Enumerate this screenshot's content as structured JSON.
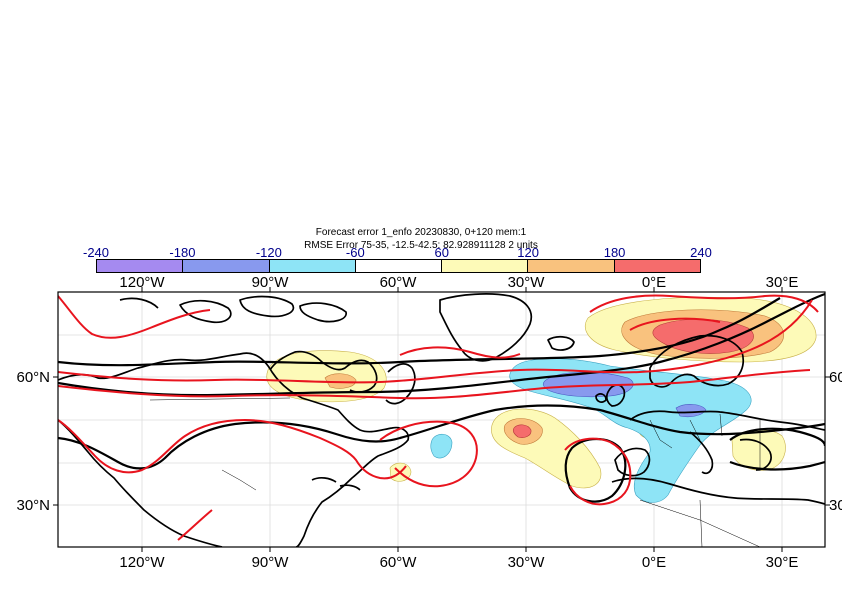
{
  "title": {
    "line1": "Forecast error  1_enfo 20230830, 0+120 mem:1",
    "line2": "RMSE Error 75-35, -12.5-42.5: 82.928911128 2 units"
  },
  "colorbar": {
    "levels": [
      "-240",
      "-180",
      "-120",
      "-60",
      "60",
      "120",
      "180",
      "240"
    ],
    "colors": [
      "#a58af0",
      "#8899ee",
      "#8ee4f6",
      "#ffffff",
      "#fdfab8",
      "#f9c27e",
      "#f56c6c"
    ]
  },
  "axes": {
    "lon_labels": [
      "120°W",
      "90°W",
      "60°W",
      "30°W",
      "0°E",
      "30°E"
    ],
    "lat_labels": [
      "60°N",
      "30°N"
    ]
  },
  "legend_colors": {
    "contour_black": "#000000",
    "contour_red": "#e8141e"
  }
}
